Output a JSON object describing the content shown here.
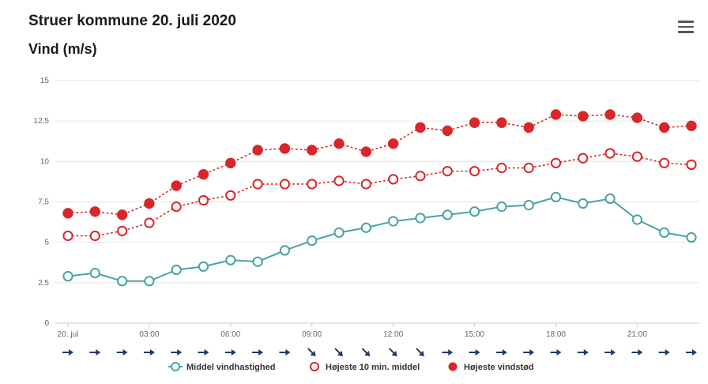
{
  "header": {
    "title": "Struer kommune 20. juli 2020",
    "menu_icon": "hamburger-menu-icon"
  },
  "chart_data": {
    "type": "line",
    "title": "Vind (m/s)",
    "xlabel": "",
    "ylabel": "",
    "ylim": [
      0,
      15
    ],
    "yticks": [
      0,
      2.5,
      5,
      7.5,
      10,
      12.5,
      15
    ],
    "ytick_labels": [
      "0",
      "2,5",
      "5",
      "7,5",
      "10",
      "12,5",
      "15"
    ],
    "x": [
      0,
      1,
      2,
      3,
      4,
      5,
      6,
      7,
      8,
      9,
      10,
      11,
      12,
      13,
      14,
      15,
      16,
      17,
      18,
      19,
      20,
      21,
      22,
      23
    ],
    "xtick_labels": [
      {
        "index": 0,
        "label": "20. jul"
      },
      {
        "index": 3,
        "label": "03:00"
      },
      {
        "index": 6,
        "label": "06:00"
      },
      {
        "index": 9,
        "label": "09:00"
      },
      {
        "index": 12,
        "label": "12:00"
      },
      {
        "index": 15,
        "label": "15:00"
      },
      {
        "index": 18,
        "label": "18:00"
      },
      {
        "index": 21,
        "label": "21:00"
      }
    ],
    "grid": true,
    "legend_position": "bottom-center",
    "series": [
      {
        "name": "Middel vindhastighed",
        "style": "solid-line-open-marker",
        "color": "#4aa3a3",
        "values": [
          2.9,
          3.1,
          2.6,
          2.6,
          3.3,
          3.5,
          3.9,
          3.8,
          4.5,
          5.1,
          5.6,
          5.9,
          6.3,
          6.5,
          6.7,
          6.9,
          7.2,
          7.3,
          7.8,
          7.4,
          7.7,
          6.4,
          5.6,
          5.3
        ]
      },
      {
        "name": "Højeste 10 min. middel",
        "style": "dotted-line-open-marker",
        "color": "#d9262b",
        "values": [
          5.4,
          5.4,
          5.7,
          6.2,
          7.2,
          7.6,
          7.9,
          8.6,
          8.6,
          8.6,
          8.8,
          8.6,
          8.9,
          9.1,
          9.4,
          9.4,
          9.6,
          9.6,
          9.9,
          10.2,
          10.5,
          10.3,
          9.9,
          9.8
        ]
      },
      {
        "name": "Højeste vindstød",
        "style": "dotted-line-filled-marker",
        "color": "#d9262b",
        "values": [
          6.8,
          6.9,
          6.7,
          7.4,
          8.5,
          9.2,
          9.9,
          10.7,
          10.8,
          10.7,
          11.1,
          10.6,
          11.1,
          12.1,
          11.9,
          12.4,
          12.4,
          12.1,
          12.9,
          12.8,
          12.9,
          12.7,
          12.1,
          12.2
        ]
      }
    ],
    "wind_direction_arrows": {
      "icon": "wind-direction-arrow-icon",
      "color": "#1f3a6b",
      "degrees": [
        90,
        90,
        90,
        90,
        90,
        90,
        90,
        90,
        90,
        135,
        135,
        135,
        135,
        135,
        90,
        90,
        90,
        90,
        90,
        90,
        90,
        90,
        90,
        90
      ]
    }
  }
}
